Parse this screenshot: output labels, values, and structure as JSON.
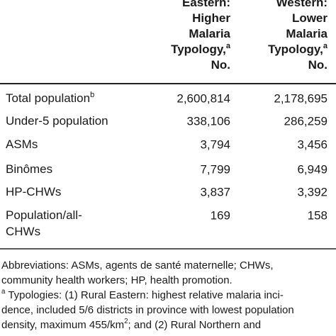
{
  "table": {
    "columns": [
      {
        "lines": [
          "Eastern:",
          "Higher",
          "Malaria",
          "Typology,",
          "No."
        ],
        "sup": "a"
      },
      {
        "lines": [
          "Western:",
          "Lower",
          "Malaria",
          "Typology,",
          "No."
        ],
        "sup": "a"
      }
    ],
    "rows": [
      {
        "label": [
          "Total population"
        ],
        "sup": "b",
        "values": [
          "2,600,814",
          "2,178,695"
        ]
      },
      {
        "label": [
          "Under-5 population"
        ],
        "values": [
          "338,106",
          "286,259"
        ]
      },
      {
        "label": [
          "ASMs"
        ],
        "values": [
          "3,794",
          "3,456"
        ]
      },
      {
        "label": [
          "Binômes"
        ],
        "values": [
          "7,799",
          "6,949"
        ]
      },
      {
        "label": [
          "HP-CHWs"
        ],
        "values": [
          "3,837",
          "3,392"
        ]
      },
      {
        "label": [
          "Population/all-",
          "CHWs"
        ],
        "values": [
          "169",
          "158"
        ]
      }
    ]
  },
  "footnotes": [
    [
      {
        "text": "Abbreviations: ASMs, agents de santé maternelle; CHWs,"
      }
    ],
    [
      {
        "text": "community health workers; HP, health promotion."
      }
    ],
    [
      {
        "sup": "a"
      },
      {
        "text": " Typologies: (1) Rural Eastern: highest relative malaria inci-"
      }
    ],
    [
      {
        "text": "dence, included 5/6 districts in province with lowest population"
      }
    ],
    [
      {
        "text": "density, maximum 455/km"
      },
      {
        "sup": "2"
      },
      {
        "text": "; and (2) Rural Northern and"
      }
    ]
  ]
}
